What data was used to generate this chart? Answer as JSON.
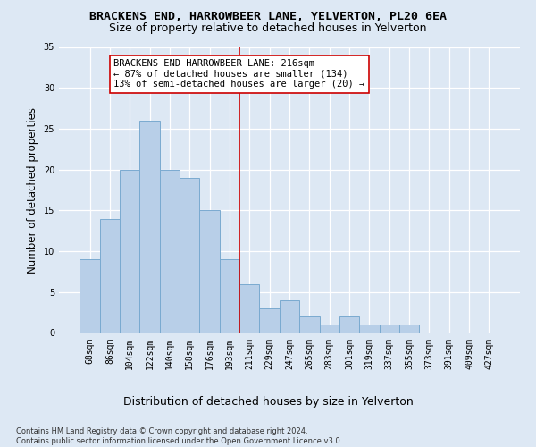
{
  "title": "BRACKENS END, HARROWBEER LANE, YELVERTON, PL20 6EA",
  "subtitle": "Size of property relative to detached houses in Yelverton",
  "xlabel_bottom": "Distribution of detached houses by size in Yelverton",
  "ylabel": "Number of detached properties",
  "footnote": "Contains HM Land Registry data © Crown copyright and database right 2024.\nContains public sector information licensed under the Open Government Licence v3.0.",
  "categories": [
    "68sqm",
    "86sqm",
    "104sqm",
    "122sqm",
    "140sqm",
    "158sqm",
    "176sqm",
    "193sqm",
    "211sqm",
    "229sqm",
    "247sqm",
    "265sqm",
    "283sqm",
    "301sqm",
    "319sqm",
    "337sqm",
    "355sqm",
    "373sqm",
    "391sqm",
    "409sqm",
    "427sqm"
  ],
  "values": [
    9,
    14,
    20,
    26,
    20,
    19,
    15,
    9,
    6,
    3,
    4,
    2,
    1,
    2,
    1,
    1,
    1,
    0,
    0,
    0,
    0
  ],
  "bar_color": "#b8cfe8",
  "bar_edge_color": "#7aaad0",
  "reference_line_index": 8,
  "reference_line_color": "#cc0000",
  "annotation_text": "BRACKENS END HARROWBEER LANE: 216sqm\n← 87% of detached houses are smaller (134)\n13% of semi-detached houses are larger (20) →",
  "annotation_box_color": "#ffffff",
  "annotation_box_edge": "#cc0000",
  "ylim": [
    0,
    35
  ],
  "yticks": [
    0,
    5,
    10,
    15,
    20,
    25,
    30,
    35
  ],
  "background_color": "#dde8f4",
  "grid_color": "#ffffff",
  "title_fontsize": 9.5,
  "subtitle_fontsize": 9,
  "ylabel_fontsize": 8.5,
  "tick_fontsize": 7,
  "annotation_fontsize": 7.5,
  "footnote_fontsize": 6
}
